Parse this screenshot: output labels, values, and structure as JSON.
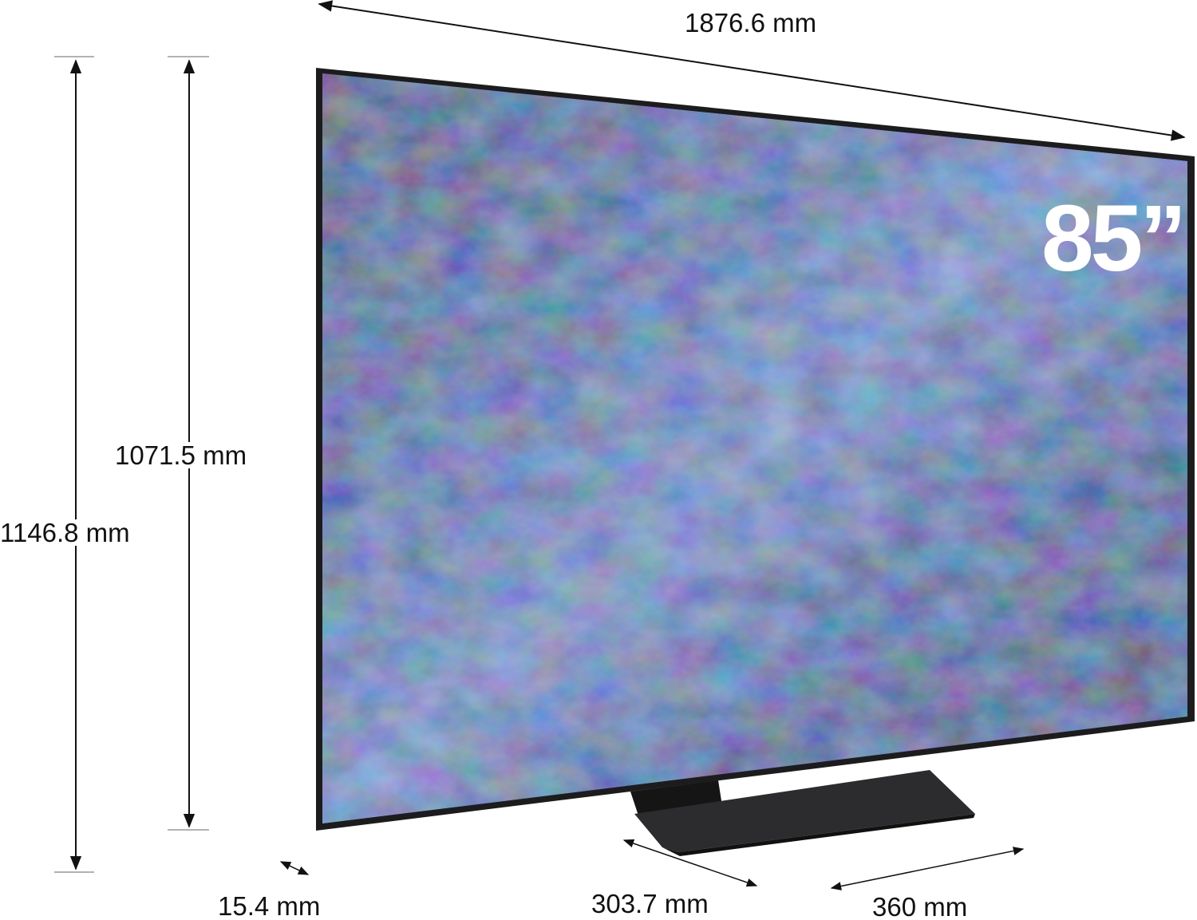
{
  "dimensions": {
    "overall_width": "1876.6 mm",
    "panel_height": "1071.5 mm",
    "overall_height": "1146.8 mm",
    "panel_depth": "15.4 mm",
    "stand_depth": "303.7 mm",
    "stand_width": "360 mm"
  },
  "screen_size_badge": "85”",
  "colors": {
    "bezel": "#1c1c1e",
    "stand": "#2a2a2c",
    "screen_blue": "#3f6fae",
    "screen_purple": "#6a5b86",
    "arrow": "#111111"
  }
}
